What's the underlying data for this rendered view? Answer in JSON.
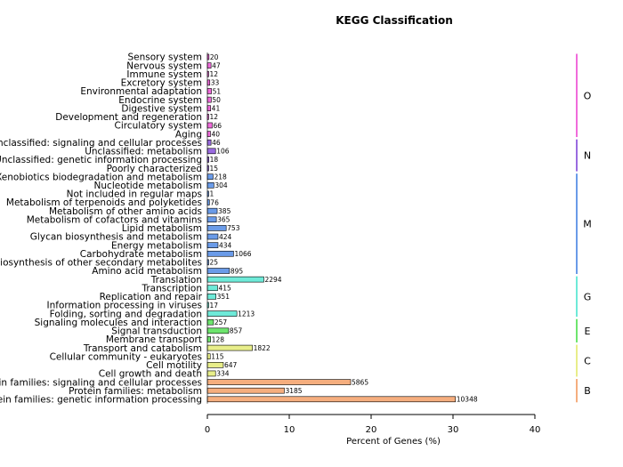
{
  "chart_data": {
    "type": "bar",
    "orientation": "horizontal",
    "title": "KEGG Classification",
    "xlabel": "Percent of Genes (%)",
    "ylabel": "",
    "xlim": [
      0,
      40
    ],
    "xticks": [
      "0",
      "10",
      "20",
      "30",
      "40"
    ],
    "grid": false,
    "legend": "none",
    "groups": [
      {
        "label": "O",
        "color": "#F06BDB",
        "categories": [
          {
            "name": "Sensory system",
            "count": "20",
            "percent": 0.2
          },
          {
            "name": "Nervous system",
            "count": "47",
            "percent": 0.45
          },
          {
            "name": "Immune system",
            "count": "12",
            "percent": 0.12
          },
          {
            "name": "Excretory system",
            "count": "33",
            "percent": 0.3
          },
          {
            "name": "Environmental adaptation",
            "count": "51",
            "percent": 0.5
          },
          {
            "name": "Endocrine system",
            "count": "50",
            "percent": 0.48
          },
          {
            "name": "Digestive system",
            "count": "41",
            "percent": 0.4
          },
          {
            "name": "Development and regeneration",
            "count": "12",
            "percent": 0.12
          },
          {
            "name": "Circulatory system",
            "count": "66",
            "percent": 0.6
          },
          {
            "name": "Aging",
            "count": "40",
            "percent": 0.38
          }
        ]
      },
      {
        "label": "N",
        "color": "#9A6BE0",
        "categories": [
          {
            "name": "Unclassified: signaling and cellular processes",
            "count": "46",
            "percent": 0.45
          },
          {
            "name": "Unclassified: metabolism",
            "count": "106",
            "percent": 1.0
          },
          {
            "name": "Unclassified: genetic information processing",
            "count": "18",
            "percent": 0.18
          },
          {
            "name": "Poorly characterized",
            "count": "15",
            "percent": 0.15
          }
        ]
      },
      {
        "label": "M",
        "color": "#6A9BE8",
        "categories": [
          {
            "name": "Xenobiotics biodegradation and metabolism",
            "count": "218",
            "percent": 0.7
          },
          {
            "name": "Nucleotide metabolism",
            "count": "304",
            "percent": 0.8
          },
          {
            "name": "Not included in regular maps",
            "count": "1",
            "percent": 0.02
          },
          {
            "name": "Metabolism of terpenoids and polyketides",
            "count": "76",
            "percent": 0.25
          },
          {
            "name": "Metabolism of other amino acids",
            "count": "385",
            "percent": 1.2
          },
          {
            "name": "Metabolism of cofactors and vitamins",
            "count": "365",
            "percent": 1.1
          },
          {
            "name": "Lipid metabolism",
            "count": "753",
            "percent": 2.3
          },
          {
            "name": "Glycan biosynthesis and metabolism",
            "count": "424",
            "percent": 1.3
          },
          {
            "name": "Energy metabolism",
            "count": "434",
            "percent": 1.3
          },
          {
            "name": "Carbohydrate metabolism",
            "count": "1066",
            "percent": 3.2
          },
          {
            "name": "Biosynthesis of other secondary metabolites",
            "count": "25",
            "percent": 0.1
          },
          {
            "name": "Amino acid metabolism",
            "count": "895",
            "percent": 2.7
          }
        ]
      },
      {
        "label": "G",
        "color": "#6EEAD8",
        "categories": [
          {
            "name": "Translation",
            "count": "2294",
            "percent": 6.9
          },
          {
            "name": "Transcription",
            "count": "415",
            "percent": 1.25
          },
          {
            "name": "Replication and repair",
            "count": "351",
            "percent": 1.05
          },
          {
            "name": "Information processing in viruses",
            "count": "17",
            "percent": 0.1
          },
          {
            "name": "Folding, sorting and degradation",
            "count": "1213",
            "percent": 3.6
          }
        ]
      },
      {
        "label": "E",
        "color": "#6EE56E",
        "categories": [
          {
            "name": "Signaling molecules and interaction",
            "count": "257",
            "percent": 0.75
          },
          {
            "name": "Signal transduction",
            "count": "857",
            "percent": 2.6
          },
          {
            "name": "Membrane transport",
            "count": "128",
            "percent": 0.4
          }
        ]
      },
      {
        "label": "C",
        "color": "#E8EE8A",
        "categories": [
          {
            "name": "Transport and catabolism",
            "count": "1822",
            "percent": 5.5
          },
          {
            "name": "Cellular community - eukaryotes",
            "count": "115",
            "percent": 0.35
          },
          {
            "name": "Cell motility",
            "count": "647",
            "percent": 1.95
          },
          {
            "name": "Cell growth and death",
            "count": "334",
            "percent": 1.0
          }
        ]
      },
      {
        "label": "B",
        "color": "#F5AE7E",
        "categories": [
          {
            "name": "Protein families: signaling and cellular processes",
            "count": "5865",
            "percent": 17.5
          },
          {
            "name": "Protein families: metabolism",
            "count": "3185",
            "percent": 9.4
          },
          {
            "name": "Protein families: genetic information processing",
            "count": "10348",
            "percent": 30.3
          }
        ]
      }
    ]
  }
}
